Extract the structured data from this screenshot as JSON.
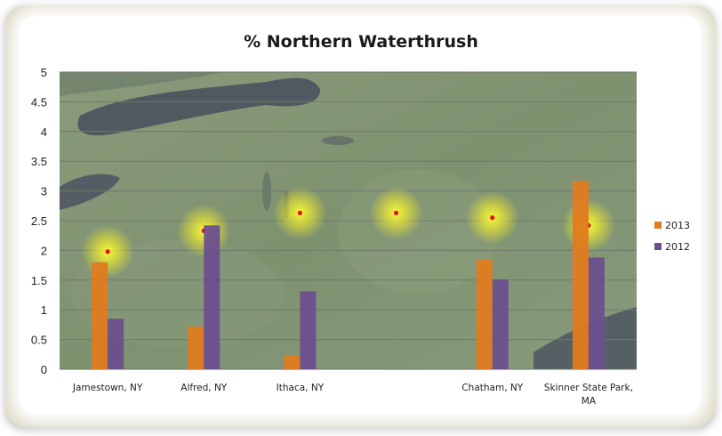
{
  "chart_data": {
    "type": "bar",
    "title": "% Northern Waterthrush",
    "xlabel": "",
    "ylabel": "",
    "ylim": [
      0,
      5
    ],
    "yticks": [
      "0",
      "0.5",
      "1",
      "1.5",
      "2",
      "2.5",
      "3",
      "3.5",
      "4",
      "4.5",
      "5"
    ],
    "categories": [
      [
        "Jamestown, NY"
      ],
      [
        "Alfred, NY"
      ],
      [
        "Ithaca, NY"
      ],
      [
        ""
      ],
      [
        "Chatham, NY"
      ],
      [
        "Skinner State Park,",
        "MA"
      ]
    ],
    "series": [
      {
        "name": "2013",
        "color": "#e07b1f",
        "values": [
          1.8,
          0.72,
          0.23,
          0,
          1.84,
          3.17
        ]
      },
      {
        "name": "2012",
        "color": "#6c4f8e",
        "values": [
          0.85,
          2.42,
          1.31,
          0,
          1.51,
          1.88
        ]
      }
    ],
    "location_markers": [
      1.98,
      2.33,
      2.63,
      2.63,
      2.55,
      2.42
    ],
    "background": "satellite map of New York region",
    "grid": true,
    "legend_position": "right"
  }
}
